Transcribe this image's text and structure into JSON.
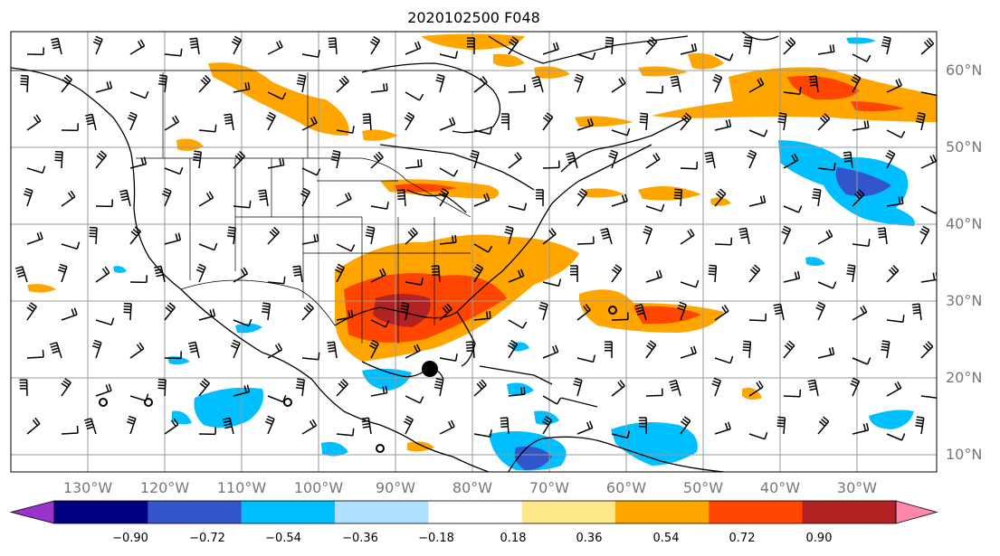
{
  "title": "2020102500 F048",
  "lat_labels": [
    "60°N",
    "50°N",
    "40°N",
    "30°N",
    "20°N",
    "10°N"
  ],
  "lon_labels": [
    "130°W",
    "120°W",
    "110°W",
    "100°W",
    "90°W",
    "80°W",
    "70°W",
    "60°W",
    "50°W",
    "40°W",
    "30°W"
  ],
  "colorbar": {
    "ticks": [
      "−0.90",
      "−0.72",
      "−0.54",
      "−0.36",
      "−0.18",
      "0.18",
      "0.36",
      "0.54",
      "0.72",
      "0.90"
    ],
    "colors": [
      "#9933cc",
      "#000080",
      "#3355cc",
      "#00bfff",
      "#b0e0ff",
      "#ffffff",
      "#ffe88a",
      "#ffa500",
      "#ff4500",
      "#b22222",
      "#ff88aa"
    ]
  },
  "colors": {
    "frame": "#000000",
    "grid": "#999999",
    "coast": "#000000"
  }
}
